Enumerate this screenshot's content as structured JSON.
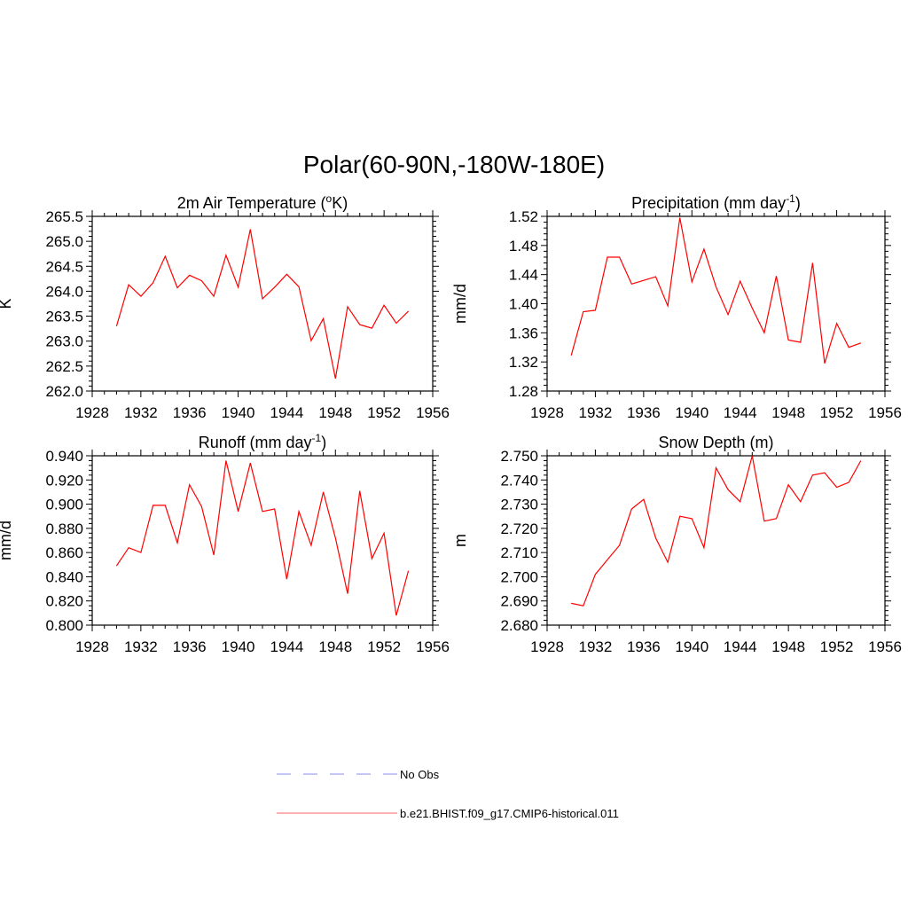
{
  "main_title": "Polar(60-90N,-180W-180E)",
  "legend": {
    "items": [
      {
        "label": "No Obs",
        "color": "#a0a0f0",
        "style": "dashed"
      },
      {
        "label": "b.e21.BHIST.f09_g17.CMIP6-historical.011",
        "color": "#ff8080",
        "style": "solid"
      }
    ]
  },
  "series_color": "#ff0000",
  "chart_data": [
    {
      "type": "line",
      "title": "2m Air Temperature (",
      "title_sup": "o",
      "title_after": "K)",
      "ylabel": "K",
      "xlim": [
        1928,
        1956
      ],
      "ylim": [
        262.0,
        265.5
      ],
      "xticks": [
        "1928",
        "1932",
        "1936",
        "1940",
        "1944",
        "1948",
        "1952",
        "1956"
      ],
      "yticks": [
        "262.0",
        "262.5",
        "263.0",
        "263.5",
        "264.0",
        "264.5",
        "265.0",
        "265.5"
      ],
      "x": [
        1930,
        1931,
        1932,
        1933,
        1934,
        1935,
        1936,
        1937,
        1938,
        1939,
        1940,
        1941,
        1942,
        1943,
        1944,
        1945,
        1946,
        1947,
        1948,
        1949,
        1950,
        1951,
        1952,
        1953,
        1954
      ],
      "values": [
        263.3,
        264.13,
        263.9,
        264.17,
        264.7,
        264.07,
        264.32,
        264.21,
        263.9,
        264.72,
        264.08,
        265.24,
        263.85,
        264.08,
        264.34,
        264.09,
        263.01,
        263.45,
        262.25,
        263.69,
        263.33,
        263.26,
        263.72,
        263.36,
        263.6
      ]
    },
    {
      "type": "line",
      "title": "Precipitation (mm day",
      "title_sup": "-1",
      "title_after": ")",
      "ylabel": "mm/d",
      "xlim": [
        1928,
        1956
      ],
      "ylim": [
        1.28,
        1.52
      ],
      "xticks": [
        "1928",
        "1932",
        "1936",
        "1940",
        "1944",
        "1948",
        "1952",
        "1956"
      ],
      "yticks": [
        "1.28",
        "1.32",
        "1.36",
        "1.40",
        "1.44",
        "1.48",
        "1.52"
      ],
      "x": [
        1930,
        1931,
        1932,
        1933,
        1934,
        1935,
        1936,
        1937,
        1938,
        1939,
        1940,
        1941,
        1942,
        1943,
        1944,
        1945,
        1946,
        1947,
        1948,
        1949,
        1950,
        1951,
        1952,
        1953,
        1954
      ],
      "values": [
        1.329,
        1.389,
        1.391,
        1.464,
        1.464,
        1.427,
        1.432,
        1.437,
        1.397,
        1.518,
        1.43,
        1.475,
        1.423,
        1.385,
        1.431,
        1.394,
        1.36,
        1.438,
        1.35,
        1.347,
        1.456,
        1.318,
        1.373,
        1.34,
        1.346
      ]
    },
    {
      "type": "line",
      "title": "Runoff (mm day",
      "title_sup": "-1",
      "title_after": ")",
      "ylabel": "mm/d",
      "xlim": [
        1928,
        1956
      ],
      "ylim": [
        0.8,
        0.94
      ],
      "xticks": [
        "1928",
        "1932",
        "1936",
        "1940",
        "1944",
        "1948",
        "1952",
        "1956"
      ],
      "yticks": [
        "0.800",
        "0.820",
        "0.840",
        "0.860",
        "0.880",
        "0.900",
        "0.920",
        "0.940"
      ],
      "x": [
        1930,
        1931,
        1932,
        1933,
        1934,
        1935,
        1936,
        1937,
        1938,
        1939,
        1940,
        1941,
        1942,
        1943,
        1944,
        1945,
        1946,
        1947,
        1948,
        1949,
        1950,
        1951,
        1952,
        1953,
        1954
      ],
      "values": [
        0.849,
        0.864,
        0.86,
        0.899,
        0.899,
        0.868,
        0.916,
        0.898,
        0.858,
        0.936,
        0.894,
        0.934,
        0.894,
        0.896,
        0.838,
        0.894,
        0.866,
        0.91,
        0.872,
        0.826,
        0.911,
        0.855,
        0.876,
        0.808,
        0.845
      ]
    },
    {
      "type": "line",
      "title": "Snow Depth (m)",
      "title_sup": "",
      "title_after": "",
      "ylabel": "m",
      "xlim": [
        1928,
        1956
      ],
      "ylim": [
        2.68,
        2.75
      ],
      "xticks": [
        "1928",
        "1932",
        "1936",
        "1940",
        "1944",
        "1948",
        "1952",
        "1956"
      ],
      "yticks": [
        "2.680",
        "2.690",
        "2.700",
        "2.710",
        "2.720",
        "2.730",
        "2.740",
        "2.750"
      ],
      "x": [
        1930,
        1931,
        1932,
        1933,
        1934,
        1935,
        1936,
        1937,
        1938,
        1939,
        1940,
        1941,
        1942,
        1943,
        1944,
        1945,
        1946,
        1947,
        1948,
        1949,
        1950,
        1951,
        1952,
        1953,
        1954
      ],
      "values": [
        2.689,
        2.688,
        2.701,
        2.707,
        2.713,
        2.728,
        2.732,
        2.716,
        2.706,
        2.725,
        2.724,
        2.712,
        2.745,
        2.736,
        2.731,
        2.75,
        2.723,
        2.724,
        2.738,
        2.731,
        2.742,
        2.743,
        2.737,
        2.739,
        2.748
      ]
    }
  ]
}
